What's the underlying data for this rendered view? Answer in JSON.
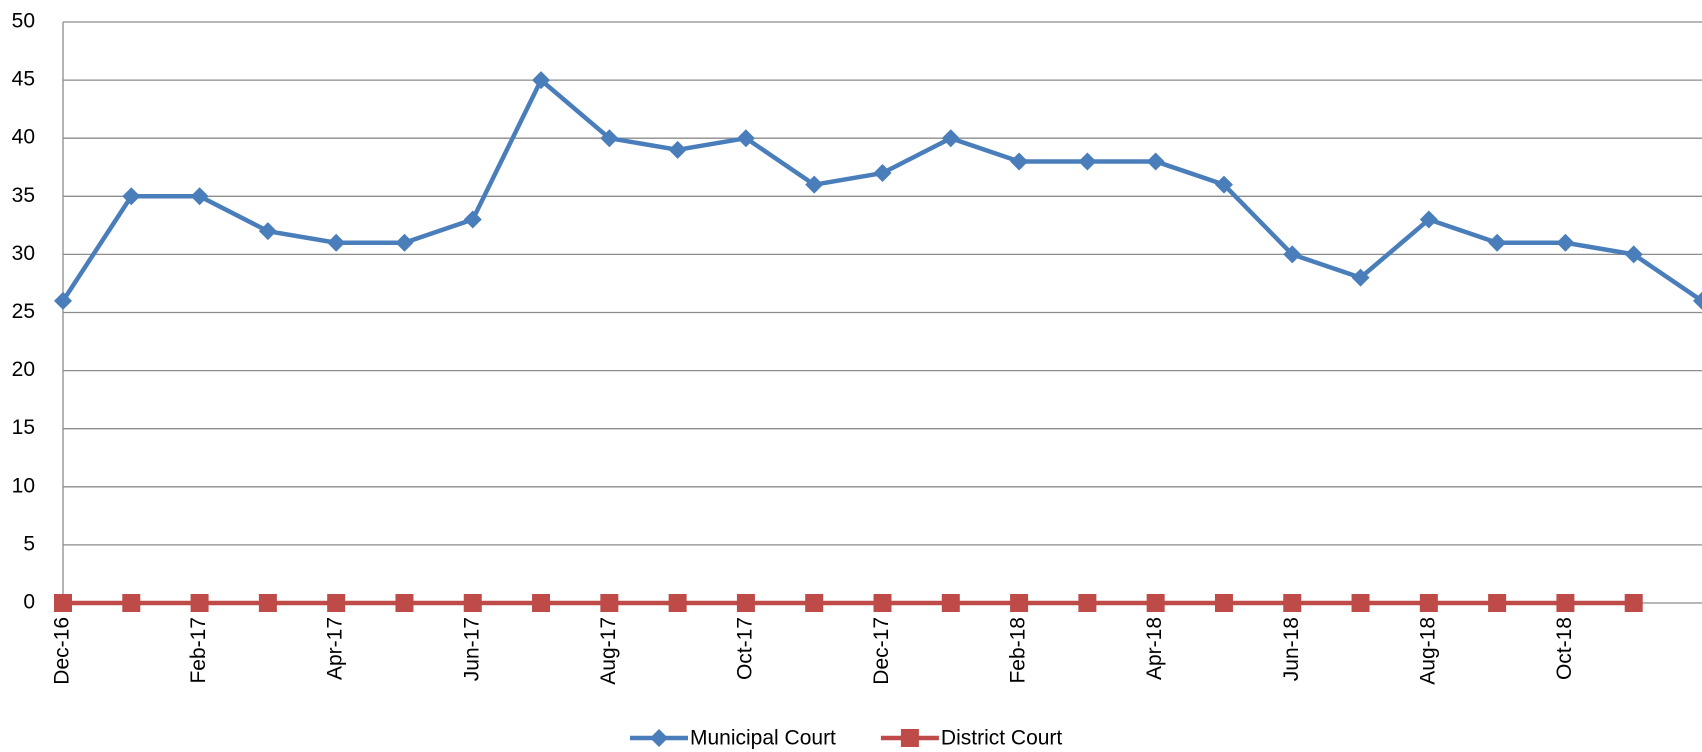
{
  "chart_data": {
    "type": "line",
    "categories": [
      "Dec-16",
      null,
      "Feb-17",
      null,
      "Apr-17",
      null,
      "Jun-17",
      null,
      "Aug-17",
      null,
      "Oct-17",
      null,
      "Dec-17",
      null,
      "Feb-18",
      null,
      "Apr-18",
      null,
      "Jun-18",
      null,
      "Aug-18",
      null,
      "Oct-18",
      null,
      null
    ],
    "series": [
      {
        "name": "Municipal Court",
        "color": "#4a7ebb",
        "marker": "diamond",
        "values": [
          26,
          35,
          35,
          32,
          31,
          31,
          33,
          45,
          40,
          39,
          40,
          36,
          37,
          40,
          38,
          38,
          38,
          36,
          30,
          28,
          33,
          31,
          31,
          30,
          26
        ]
      },
      {
        "name": "District Court",
        "color": "#be4b48",
        "marker": "square",
        "values": [
          0,
          0,
          0,
          0,
          0,
          0,
          0,
          0,
          0,
          0,
          0,
          0,
          0,
          0,
          0,
          0,
          0,
          0,
          0,
          0,
          0,
          0,
          0,
          0,
          null
        ]
      }
    ],
    "ylim": [
      0,
      50
    ],
    "yticks": [
      0,
      5,
      10,
      15,
      20,
      25,
      30,
      35,
      40,
      45,
      50
    ],
    "grid": true,
    "legend": "bottom"
  }
}
